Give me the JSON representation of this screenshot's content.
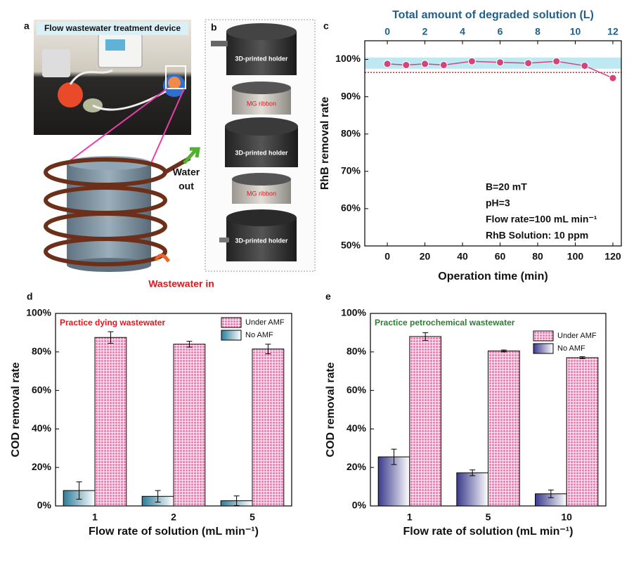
{
  "panel_labels": [
    "a",
    "b",
    "c",
    "d",
    "e"
  ],
  "figure_a": {
    "title": "Flow wastewater treatment device",
    "labels": [
      "Water",
      "out",
      "Wastewater in"
    ]
  },
  "figure_b": {
    "labels": [
      "3D-printed holder",
      "MG ribbon",
      "3D-printed holder",
      "MG ribbon",
      "3D-printed holder"
    ]
  },
  "chart_data": [
    {
      "type": "line",
      "xlabel": "Operation time (min)",
      "x2label": "Total amount of degraded solution (L)",
      "ylabel": "RhB removal rate",
      "x": [
        0,
        10,
        20,
        30,
        45,
        60,
        75,
        90,
        105,
        120
      ],
      "values": [
        98.8,
        98.5,
        98.8,
        98.5,
        99.5,
        99.2,
        99,
        99.5,
        98.3,
        95
      ],
      "color": "#d0457a",
      "x2color": "#1f5f8b",
      "threshold": 96.5,
      "band": [
        97.5,
        100.5
      ],
      "xlim": [
        -12,
        124.5
      ],
      "xticks": [
        0,
        20,
        40,
        60,
        80,
        100,
        120
      ],
      "x2lim": [
        -1.2,
        12.45
      ],
      "x2ticks": [
        0,
        2,
        4,
        6,
        8,
        10,
        12
      ],
      "ylim": [
        50,
        105
      ],
      "yticks": [
        {
          "value": 50,
          "label": "50%"
        },
        {
          "value": 60,
          "label": "60%"
        },
        {
          "value": 70,
          "label": "70%"
        },
        {
          "value": 80,
          "label": "80%"
        },
        {
          "value": 90,
          "label": "90%"
        },
        {
          "value": 100,
          "label": "100%"
        }
      ],
      "annotations": [
        "B=20 mT",
        "pH=3",
        "Flow rate=100 mL min⁻¹",
        "RhB Solution: 10 ppm"
      ]
    },
    {
      "type": "bar",
      "annotation": "Practice dying wastewater",
      "annotation_color": "#e8141c",
      "xlabel": "Flow rate of solution (mL min⁻¹)",
      "ylabel": "COD removal rate",
      "categories": [
        "1",
        "2",
        "5"
      ],
      "series": [
        {
          "name": "No AMF",
          "color": "#2e7d9a",
          "values": [
            8,
            5,
            2.7
          ],
          "errors": [
            4.5,
            3,
            2.5
          ]
        },
        {
          "name": "Under  AMF",
          "color": "#c0306a",
          "values": [
            87.5,
            84,
            81.5
          ],
          "errors": [
            3,
            1.5,
            2.5
          ]
        }
      ],
      "ylim": [
        0,
        100
      ],
      "yticks": [
        {
          "value": 0,
          "label": "0%"
        },
        {
          "value": 20,
          "label": "20%"
        },
        {
          "value": 40,
          "label": "40%"
        },
        {
          "value": 60,
          "label": "60%"
        },
        {
          "value": 80,
          "label": "80%"
        },
        {
          "value": 100,
          "label": "100%"
        }
      ]
    },
    {
      "type": "bar",
      "annotation": "Practice petrochemical wastewater",
      "annotation_color": "#2e7d32",
      "xlabel": "Flow rate of solution (mL min⁻¹)",
      "ylabel": "COD removal rate",
      "categories": [
        "1",
        "5",
        "10"
      ],
      "series": [
        {
          "name": "No AMF",
          "color": "#3a3a8c",
          "values": [
            25.5,
            17.2,
            6.3
          ],
          "errors": [
            4,
            1.5,
            2
          ]
        },
        {
          "name": "Under  AMF",
          "color": "#c0306a",
          "values": [
            88,
            80.5,
            77
          ],
          "errors": [
            2,
            0.5,
            0.5
          ]
        }
      ],
      "ylim": [
        0,
        100
      ],
      "yticks": [
        {
          "value": 0,
          "label": "0%"
        },
        {
          "value": 20,
          "label": "20%"
        },
        {
          "value": 40,
          "label": "40%"
        },
        {
          "value": 60,
          "label": "60%"
        },
        {
          "value": 80,
          "label": "80%"
        },
        {
          "value": 100,
          "label": "100%"
        }
      ]
    }
  ]
}
